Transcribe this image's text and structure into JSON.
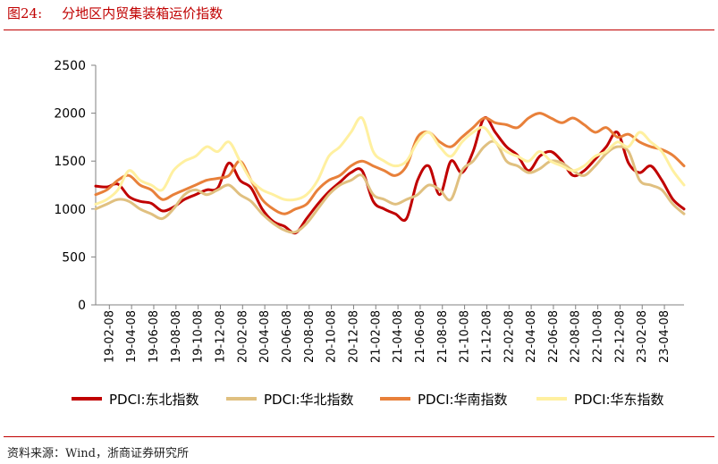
{
  "header": {
    "figure_number": "图24:",
    "title": "分地区内贸集装箱运价指数"
  },
  "footer": {
    "source": "资料来源：Wind，浙商证券研究所"
  },
  "colors": {
    "accent": "#c00000",
    "axis": "#808080"
  },
  "chart_data": {
    "type": "line",
    "title": "分地区内贸集装箱运价指数",
    "xlabel": "",
    "ylabel": "",
    "ylim": [
      0,
      2500
    ],
    "yticks": [
      0,
      500,
      1000,
      1500,
      2000,
      2500
    ],
    "ytick_labels": [
      "0",
      "500",
      "1000",
      "1500",
      "2000",
      "2500"
    ],
    "grid": false,
    "legend_position": "bottom",
    "x_start": "2019-01",
    "x_end": "2023-06",
    "x_tick_labels": [
      "19-02-08",
      "19-04-08",
      "19-06-08",
      "19-08-08",
      "19-10-08",
      "19-12-08",
      "20-02-08",
      "20-04-08",
      "20-06-08",
      "20-08-08",
      "20-10-08",
      "20-12-08",
      "21-02-08",
      "21-04-08",
      "21-06-08",
      "21-08-08",
      "21-10-08",
      "21-12-08",
      "22-02-08",
      "22-04-08",
      "22-06-08",
      "22-08-08",
      "22-10-08",
      "22-12-08",
      "23-02-08",
      "23-04-08"
    ],
    "x": [
      "2019-01",
      "2019-02",
      "2019-03",
      "2019-04",
      "2019-05",
      "2019-06",
      "2019-07",
      "2019-08",
      "2019-09",
      "2019-10",
      "2019-11",
      "2019-12",
      "2020-01",
      "2020-02",
      "2020-03",
      "2020-04",
      "2020-05",
      "2020-06",
      "2020-07",
      "2020-08",
      "2020-09",
      "2020-10",
      "2020-11",
      "2020-12",
      "2021-01",
      "2021-02",
      "2021-03",
      "2021-04",
      "2021-05",
      "2021-06",
      "2021-07",
      "2021-08",
      "2021-09",
      "2021-10",
      "2021-11",
      "2021-12",
      "2022-01",
      "2022-02",
      "2022-03",
      "2022-04",
      "2022-05",
      "2022-06",
      "2022-07",
      "2022-08",
      "2022-09",
      "2022-10",
      "2022-11",
      "2022-12",
      "2023-01",
      "2023-02",
      "2023-03",
      "2023-04",
      "2023-05",
      "2023-06"
    ],
    "series": [
      {
        "name": "PDCI:东北指数",
        "color": "#c00000",
        "values": [
          1240,
          1230,
          1260,
          1130,
          1080,
          1060,
          980,
          1020,
          1100,
          1150,
          1200,
          1220,
          1480,
          1300,
          1220,
          1000,
          870,
          820,
          750,
          900,
          1050,
          1180,
          1280,
          1380,
          1400,
          1080,
          1000,
          950,
          900,
          1300,
          1450,
          1150,
          1500,
          1380,
          1600,
          1950,
          1800,
          1650,
          1560,
          1400,
          1550,
          1600,
          1500,
          1350,
          1400,
          1520,
          1650,
          1800,
          1480,
          1380,
          1450,
          1300,
          1100,
          1000
        ]
      },
      {
        "name": "PDCI:华北指数",
        "color": "#e0c080",
        "values": [
          1000,
          1050,
          1100,
          1080,
          1000,
          950,
          900,
          1000,
          1150,
          1200,
          1150,
          1200,
          1250,
          1150,
          1080,
          950,
          850,
          780,
          760,
          850,
          1000,
          1150,
          1250,
          1300,
          1350,
          1150,
          1100,
          1050,
          1100,
          1150,
          1250,
          1200,
          1100,
          1400,
          1500,
          1650,
          1700,
          1500,
          1450,
          1380,
          1420,
          1500,
          1480,
          1400,
          1350,
          1450,
          1580,
          1650,
          1600,
          1300,
          1250,
          1200,
          1050,
          950
        ]
      },
      {
        "name": "PDCI:华南指数",
        "color": "#e8803a",
        "values": [
          1150,
          1200,
          1300,
          1350,
          1250,
          1200,
          1100,
          1150,
          1200,
          1250,
          1300,
          1320,
          1350,
          1500,
          1300,
          1100,
          1000,
          950,
          1000,
          1050,
          1200,
          1300,
          1350,
          1450,
          1500,
          1450,
          1400,
          1350,
          1450,
          1750,
          1800,
          1700,
          1650,
          1750,
          1850,
          1950,
          1900,
          1880,
          1850,
          1950,
          2000,
          1950,
          1900,
          1950,
          1880,
          1800,
          1850,
          1750,
          1780,
          1700,
          1650,
          1620,
          1560,
          1450
        ]
      },
      {
        "name": "PDCI:华东指数",
        "color": "#fff0a0",
        "values": [
          1050,
          1100,
          1200,
          1400,
          1300,
          1250,
          1200,
          1400,
          1500,
          1550,
          1650,
          1600,
          1700,
          1500,
          1300,
          1200,
          1150,
          1100,
          1100,
          1150,
          1300,
          1550,
          1650,
          1800,
          1950,
          1600,
          1500,
          1450,
          1500,
          1700,
          1800,
          1650,
          1550,
          1700,
          1800,
          1850,
          1700,
          1600,
          1550,
          1500,
          1600,
          1500,
          1450,
          1400,
          1450,
          1550,
          1600,
          1700,
          1650,
          1800,
          1700,
          1600,
          1400,
          1250
        ]
      }
    ]
  }
}
